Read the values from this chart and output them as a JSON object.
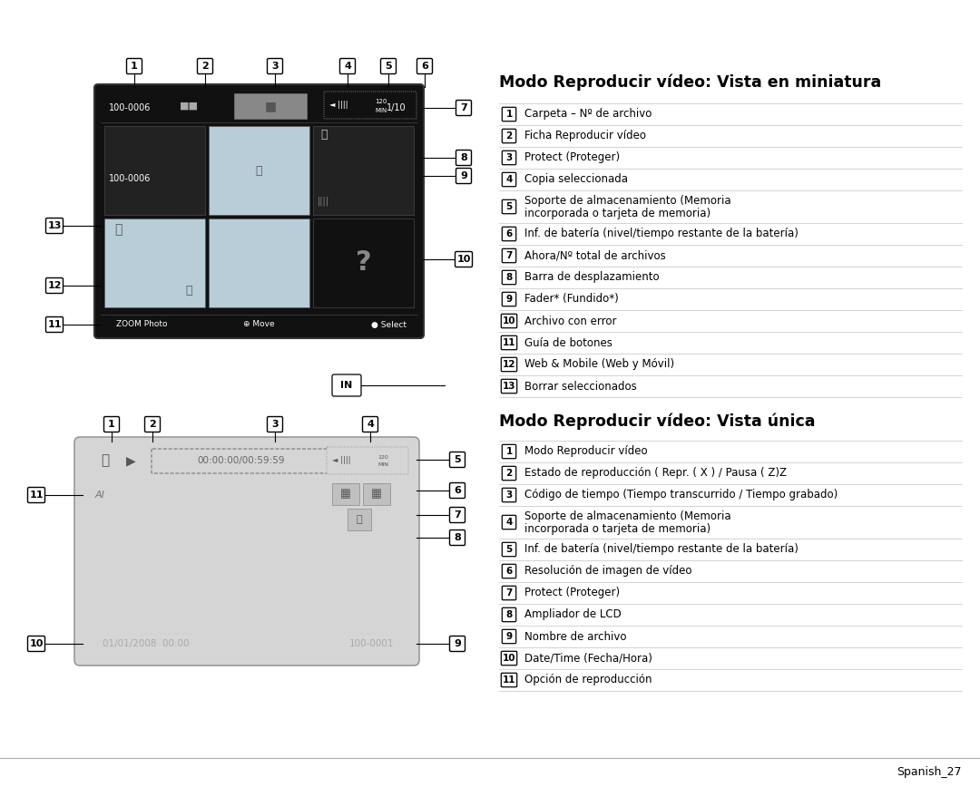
{
  "bg_color": "#ffffff",
  "title1": "Modo Reproducir vídeo: Vista en miniatura",
  "title2": "Modo Reproducir vídeo: Vista única",
  "section1_items": [
    [
      "1",
      "Carpeta – Nº de archivo",
      false
    ],
    [
      "2",
      "Ficha Reproducir vídeo",
      false
    ],
    [
      "3",
      "Protect (Proteger)",
      false
    ],
    [
      "4",
      "Copia seleccionada",
      false
    ],
    [
      "5",
      "Soporte de almacenamiento (Memoria\nincorporada o tarjeta de memoria)",
      true
    ],
    [
      "6",
      "Inf. de batería (nivel/tiempo restante de la batería)",
      false
    ],
    [
      "7",
      "Ahora/Nº total de archivos",
      false
    ],
    [
      "8",
      "Barra de desplazamiento",
      false
    ],
    [
      "9",
      "Fader* (Fundido*)",
      false
    ],
    [
      "10",
      "Archivo con error",
      false
    ],
    [
      "11",
      "Guía de botones",
      false
    ],
    [
      "12",
      "Web & Mobile (Web y Móvil)",
      false
    ],
    [
      "13",
      "Borrar seleccionados",
      false
    ]
  ],
  "section2_items": [
    [
      "1",
      "Modo Reproducir vídeo",
      false
    ],
    [
      "2",
      "Estado de reproducción ( Repr. ( X ) / Pausa ( Z)Z",
      false
    ],
    [
      "3",
      "Código de tiempo (Tiempo transcurrido / Tiempo grabado)",
      false
    ],
    [
      "4",
      "Soporte de almacenamiento (Memoria\nincorporada o tarjeta de memoria)",
      true
    ],
    [
      "5",
      "Inf. de batería (nivel/tiempo restante de la batería)",
      false
    ],
    [
      "6",
      "Resolución de imagen de vídeo",
      false
    ],
    [
      "7",
      "Protect (Proteger)",
      false
    ],
    [
      "8",
      "Ampliador de LCD",
      false
    ],
    [
      "9",
      "Nombre de archivo",
      false
    ],
    [
      "10",
      "Date/Time (Fecha/Hora)",
      false
    ],
    [
      "11",
      "Opción de reproducción",
      false
    ]
  ],
  "footer": "Spanish_27"
}
